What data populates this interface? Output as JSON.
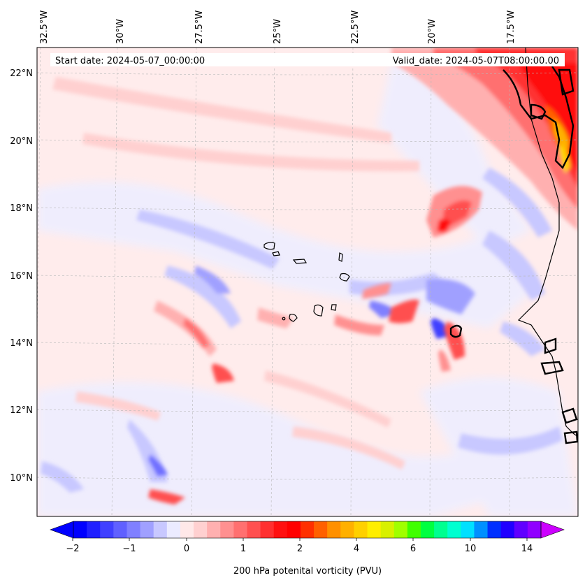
{
  "header": {
    "start_date": "Start date: 2024-05-07_00:00:00",
    "valid_date": "Valid_date: 2024-05-07T08:00:00.00"
  },
  "longitude_labels": [
    "32.5°W",
    "30°W",
    "27.5°W",
    "25°W",
    "22.5°W",
    "20°W",
    "17.5°W"
  ],
  "latitude_labels": [
    "22°N",
    "20°N",
    "18°N",
    "16°N",
    "14°N",
    "12°N",
    "10°N"
  ],
  "colorbar": {
    "label": "200 hPa potenital vorticity (PVU)",
    "ticks": [
      "−2",
      "−1",
      "0",
      "1",
      "2",
      "4",
      "6",
      "10",
      "14"
    ],
    "colors": [
      "#0000ff",
      "#2020ff",
      "#4040ff",
      "#6060ff",
      "#8080ff",
      "#a0a0ff",
      "#c8c8ff",
      "#ebebff",
      "#ffe8e8",
      "#ffd0d0",
      "#ffb0b0",
      "#ff9090",
      "#ff7070",
      "#ff5050",
      "#ff3030",
      "#ff1010",
      "#ff0000",
      "#ff3000",
      "#ff6000",
      "#ff9000",
      "#ffb000",
      "#ffd000",
      "#ffee00",
      "#d8f000",
      "#a0ff00",
      "#40ff00",
      "#00ff40",
      "#00ff90",
      "#00ffd0",
      "#00e0ff",
      "#0090ff",
      "#0030ff",
      "#2000ff",
      "#6000ff",
      "#9000ff"
    ],
    "extend_low_color": "#0000ff",
    "extend_high_color": "#cc00ff"
  }
}
